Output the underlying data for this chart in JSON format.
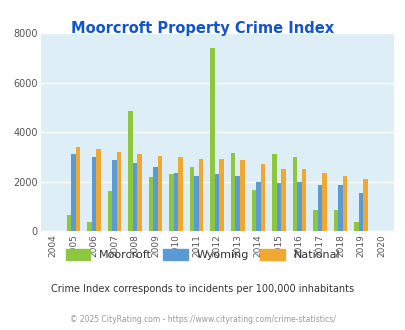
{
  "title": "Moorcroft Property Crime Index",
  "years": [
    "2004",
    "2005",
    "2006",
    "2007",
    "2008",
    "2009",
    "2010",
    "2011",
    "2012",
    "2013",
    "2014",
    "2015",
    "2016",
    "2017",
    "2018",
    "2019",
    "2020"
  ],
  "moorcroft": [
    0,
    650,
    380,
    1620,
    4850,
    2200,
    2300,
    2600,
    7400,
    3150,
    1650,
    3100,
    3000,
    830,
    830,
    380,
    0
  ],
  "wyoming": [
    0,
    3100,
    2980,
    2870,
    2750,
    2600,
    2350,
    2230,
    2320,
    2230,
    2000,
    1930,
    2000,
    1850,
    1850,
    1520,
    0
  ],
  "national": [
    0,
    3400,
    3300,
    3200,
    3100,
    3050,
    2970,
    2920,
    2890,
    2860,
    2700,
    2520,
    2490,
    2350,
    2220,
    2120,
    0
  ],
  "moorcroft_color": "#8dc63f",
  "wyoming_color": "#5b9bd5",
  "national_color": "#f0a830",
  "bg_color": "#ddeef6",
  "grid_color": "#ffffff",
  "ylim": [
    0,
    8000
  ],
  "yticks": [
    0,
    2000,
    4000,
    6000,
    8000
  ],
  "legend_labels": [
    "Moorcroft",
    "Wyoming",
    "National"
  ],
  "note": "Crime Index corresponds to incidents per 100,000 inhabitants",
  "footer": "© 2025 CityRating.com - https://www.cityrating.com/crime-statistics/",
  "title_color": "#1155cc",
  "note_color": "#333333",
  "footer_color": "#999999"
}
